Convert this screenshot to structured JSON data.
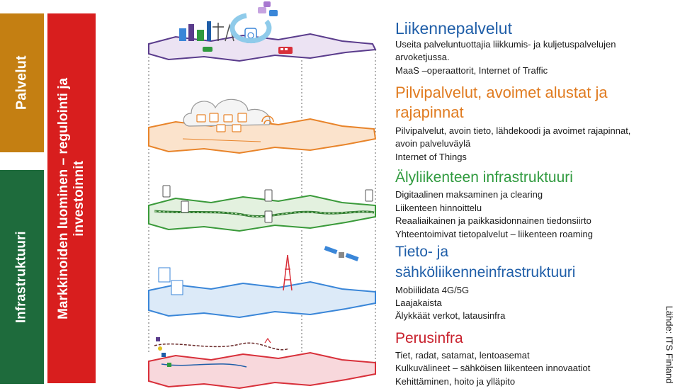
{
  "left_bars": {
    "palvelut": "Palvelut",
    "infrastruktuuri": "Infrastruktuuri",
    "markkinoiden_line1": "Markkinoiden luominen – regulointi ja",
    "markkinoiden_line2": "investoinnit"
  },
  "sections": [
    {
      "title": "Liikennepalvelut",
      "lines": [
        "Useita palveluntuottajia liikkumis- ja kuljetuspalvelujen",
        "arvoketjussa.",
        "MaaS –operaattorit, Internet of Traffic"
      ]
    },
    {
      "title_line1": "Pilvipalvelut, avoimet alustat ja",
      "title_line2": "rajapinnat",
      "lines": [
        "Pilvipalvelut, avoin tieto, lähdekoodi ja avoimet rajapinnat,",
        "avoin palveluväylä",
        "Internet of Things"
      ]
    },
    {
      "title": "Älyliikenteen infrastruktuuri",
      "lines": [
        "Digitaalinen maksaminen ja clearing",
        "Liikenteen hinnoittelu",
        "Reaaliaikainen  ja paikkasidonnainen tiedonsiirto",
        "Yhteentoimivat tietopalvelut – liikenteen roaming"
      ]
    },
    {
      "title_line1": "Tieto- ja",
      "title_line2": "sähköliikenneinfrastruktuuri",
      "lines": [
        "Mobiilidata  4G/5G",
        "Laajakaista",
        "Älykkäät verkot, latausinfra"
      ]
    },
    {
      "title": "Perusinfra",
      "lines": [
        "Tiet, radat, satamat, lentoasemat",
        "Kulkuvälineet – sähköisen liikenteen innovaatiot",
        "Kehittäminen, hoito ja ylläpito"
      ]
    }
  ],
  "source_note": "Lähde: ITS Finland",
  "colors": {
    "palvelut_bar": "#c47f12",
    "infra_bar": "#1e6b3c",
    "markkina_bar": "#d81e1e",
    "layer_purple": "#5a3c8c",
    "layer_orange": "#e8842a",
    "layer_green": "#3a9a3a",
    "layer_blue": "#3a86d8",
    "layer_red": "#d8303a"
  },
  "layer_icons": [
    "city-icon",
    "cloud-icon",
    "charging-station-icon",
    "satellite-icon",
    "map-icon"
  ]
}
